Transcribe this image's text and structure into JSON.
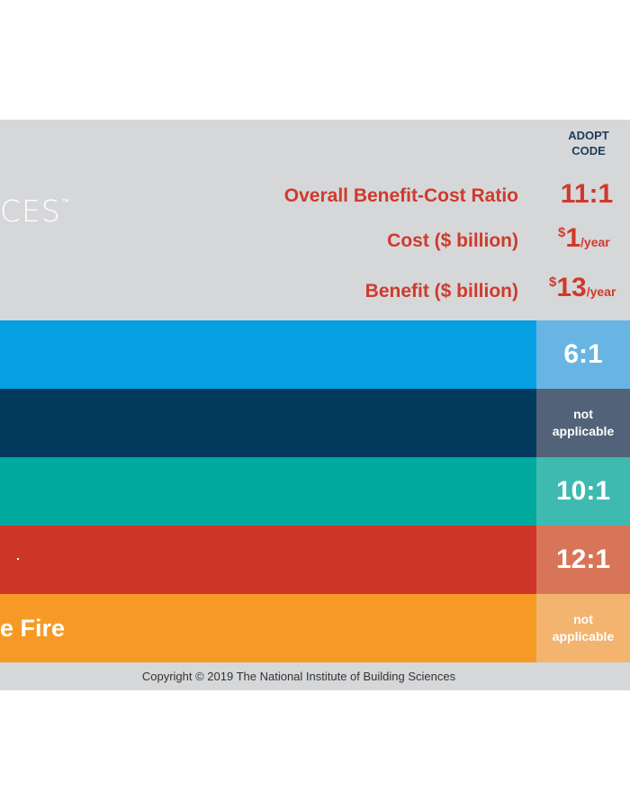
{
  "header": {
    "logo_text": "CES",
    "logo_mark": "™",
    "adopt_line1": "ADOPT",
    "adopt_line2": "CODE"
  },
  "metrics": [
    {
      "label": "Overall Benefit-Cost Ratio",
      "value": "11:1"
    },
    {
      "label": "Cost ($ billion)",
      "currency": "$",
      "value": "1",
      "unit": "/year"
    },
    {
      "label": "Benefit ($ billion)",
      "currency": "$",
      "value": "13",
      "unit": "/year"
    }
  ],
  "chart_data": {
    "type": "table",
    "column_header": "ADOPT CODE",
    "rows": [
      {
        "label": "",
        "ratio": "6:1",
        "colors": {
          "bar": "#059fe2",
          "cell": "#68b5e3"
        }
      },
      {
        "label": "",
        "ratio_line1": "not",
        "ratio_line2": "applicable",
        "colors": {
          "bar": "#023a5d",
          "cell": "#526278"
        }
      },
      {
        "label": "",
        "ratio": "10:1",
        "colors": {
          "bar": "#00a99d",
          "cell": "#3fbab1"
        }
      },
      {
        "label": "",
        "ratio": "12:1",
        "colors": {
          "bar": "#cd3626",
          "cell": "#d87559"
        }
      },
      {
        "label": "e Fire",
        "ratio_line1": "not",
        "ratio_line2": "applicable",
        "colors": {
          "bar": "#f79a25",
          "cell": "#f2b46f"
        }
      }
    ],
    "summary": {
      "overall_benefit_cost_ratio": "11:1",
      "cost_billion_per_year": 1,
      "benefit_billion_per_year": 13
    }
  },
  "footer": {
    "copyright": "Copyright © 2019 The National Institute of Building Sciences"
  },
  "colors": {
    "panel": "#d6d7d9",
    "accent_red": "#cf3a2b",
    "header_navy": "#1e3b57"
  }
}
